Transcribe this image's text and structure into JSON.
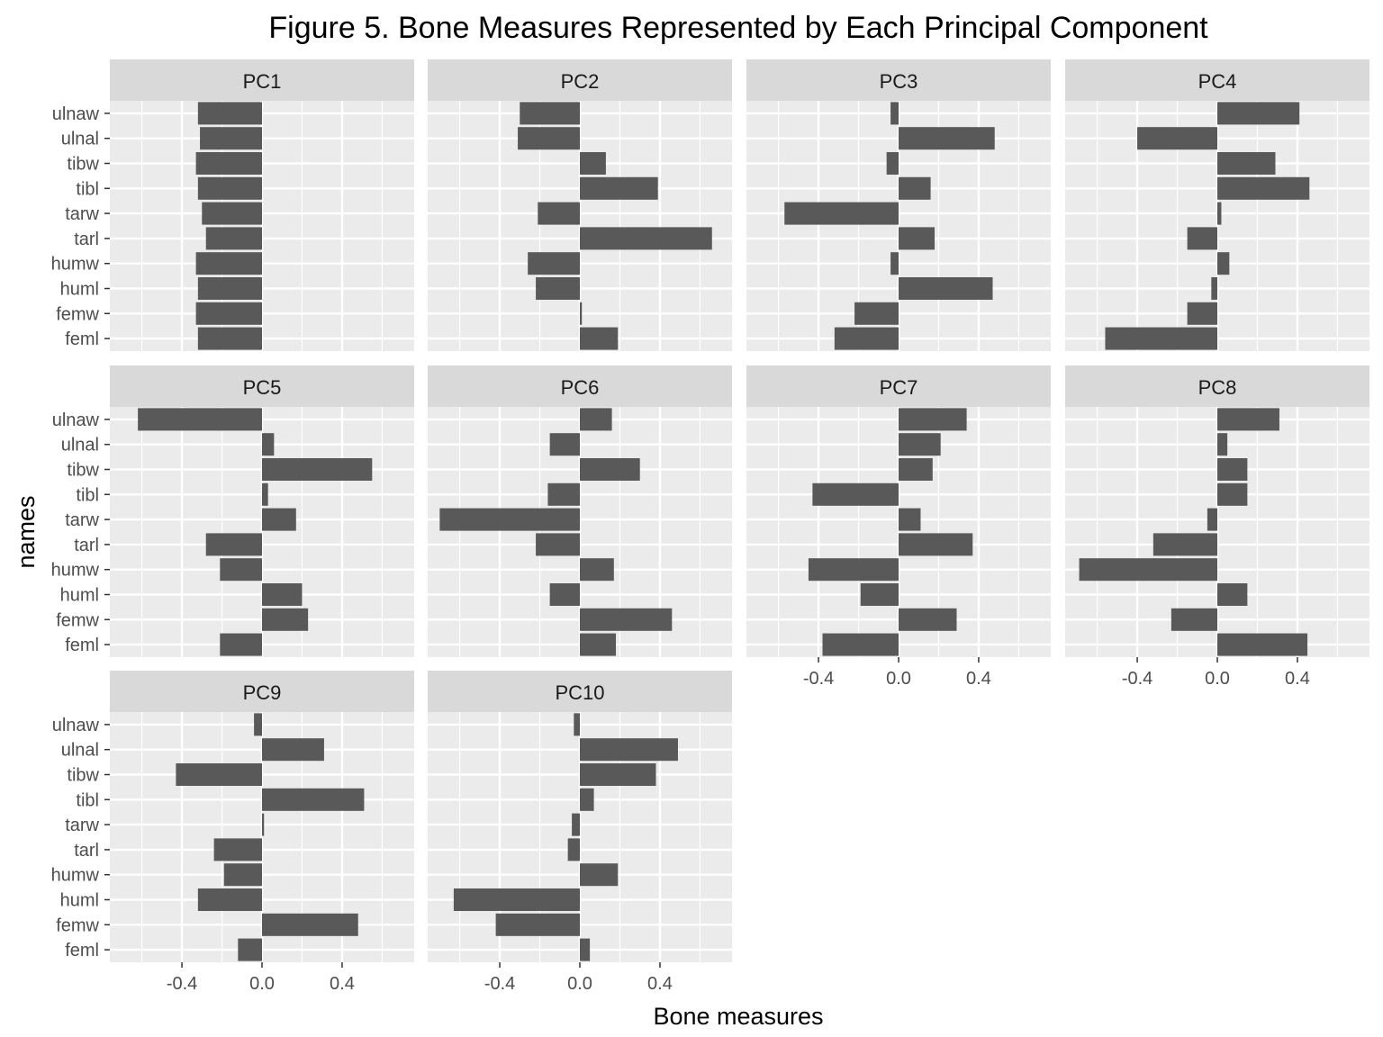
{
  "chart_data": {
    "type": "bar",
    "title": "Figure 5. Bone Measures Represented by Each Principal Component",
    "xlabel": "Bone measures",
    "ylabel": "names",
    "orientation": "horizontal",
    "facet_layout": "4 columns x 3 rows",
    "xlim": [
      -0.76,
      0.76
    ],
    "x_ticks": [
      -0.4,
      0.0,
      0.4
    ],
    "x_tick_labels": [
      "-0.4",
      "0.0",
      "0.4"
    ],
    "grid": true,
    "categories": [
      "ulnaw",
      "ulnal",
      "tibw",
      "tibl",
      "tarw",
      "tarl",
      "humw",
      "huml",
      "femw",
      "feml"
    ],
    "series": [
      {
        "name": "PC1",
        "values": [
          -0.32,
          -0.31,
          -0.33,
          -0.32,
          -0.3,
          -0.28,
          -0.33,
          -0.32,
          -0.33,
          -0.32
        ]
      },
      {
        "name": "PC2",
        "values": [
          -0.3,
          -0.31,
          0.13,
          0.39,
          -0.21,
          0.66,
          -0.26,
          -0.22,
          0.01,
          0.19
        ]
      },
      {
        "name": "PC3",
        "values": [
          -0.04,
          0.48,
          -0.06,
          0.16,
          -0.57,
          0.18,
          -0.04,
          0.47,
          -0.22,
          -0.32
        ]
      },
      {
        "name": "PC4",
        "values": [
          0.41,
          -0.4,
          0.29,
          0.46,
          0.02,
          -0.15,
          0.06,
          -0.03,
          -0.15,
          -0.56
        ]
      },
      {
        "name": "PC5",
        "values": [
          -0.62,
          0.06,
          0.55,
          0.03,
          0.17,
          -0.28,
          -0.21,
          0.2,
          0.23,
          -0.21
        ]
      },
      {
        "name": "PC6",
        "values": [
          0.16,
          -0.15,
          0.3,
          -0.16,
          -0.7,
          -0.22,
          0.17,
          -0.15,
          0.46,
          0.18
        ]
      },
      {
        "name": "PC7",
        "values": [
          0.34,
          0.21,
          0.17,
          -0.43,
          0.11,
          0.37,
          -0.45,
          -0.19,
          0.29,
          -0.38
        ]
      },
      {
        "name": "PC8",
        "values": [
          0.31,
          0.05,
          0.15,
          0.15,
          -0.05,
          -0.32,
          -0.69,
          0.15,
          -0.23,
          0.45
        ]
      },
      {
        "name": "PC9",
        "values": [
          -0.04,
          0.31,
          -0.43,
          0.51,
          0.01,
          -0.24,
          -0.19,
          -0.32,
          0.48,
          -0.12
        ]
      },
      {
        "name": "PC10",
        "values": [
          -0.03,
          0.49,
          0.38,
          0.07,
          -0.04,
          -0.06,
          0.19,
          -0.63,
          -0.42,
          0.05
        ]
      }
    ]
  },
  "colors": {
    "bar": "#595959",
    "panel_background": "#ebebeb",
    "strip_background": "#d9d9d9",
    "grid_major": "#ffffff",
    "axis_text": "#4d4d4d",
    "title_text": "#000000"
  }
}
